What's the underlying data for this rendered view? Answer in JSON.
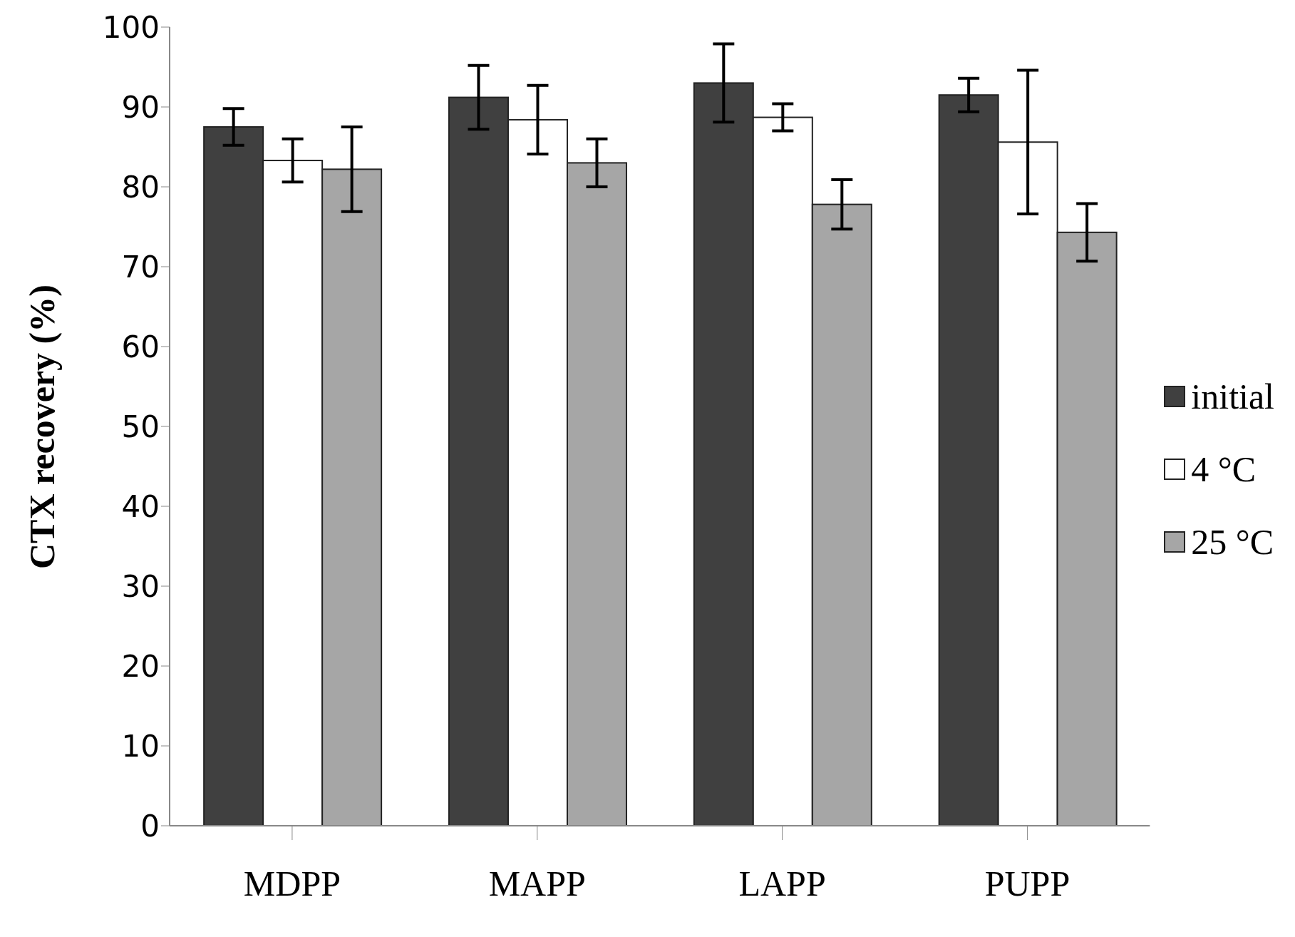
{
  "chart_data": {
    "type": "bar",
    "ylabel": "CTX recovery (%)",
    "categories": [
      "MDPP",
      "MAPP",
      "LAPP",
      "PUPP"
    ],
    "series": [
      {
        "name": "initial",
        "color": "#404040",
        "values": [
          87.5,
          91.2,
          93.0,
          91.5
        ],
        "errors": [
          2.3,
          4.0,
          4.9,
          2.1
        ]
      },
      {
        "name": "4 °C",
        "color": "#ffffff",
        "values": [
          83.3,
          88.4,
          88.7,
          85.6
        ],
        "errors": [
          2.7,
          4.3,
          1.7,
          9.0
        ]
      },
      {
        "name": "25 °C",
        "color": "#a6a6a6",
        "values": [
          82.2,
          83.0,
          77.8,
          74.3
        ],
        "errors": [
          5.3,
          3.0,
          3.1,
          3.6
        ]
      }
    ],
    "ylim": [
      0,
      100
    ],
    "yticks": [
      0,
      10,
      20,
      30,
      40,
      50,
      60,
      70,
      80,
      90,
      100
    ],
    "grid": false,
    "legend": "right"
  }
}
